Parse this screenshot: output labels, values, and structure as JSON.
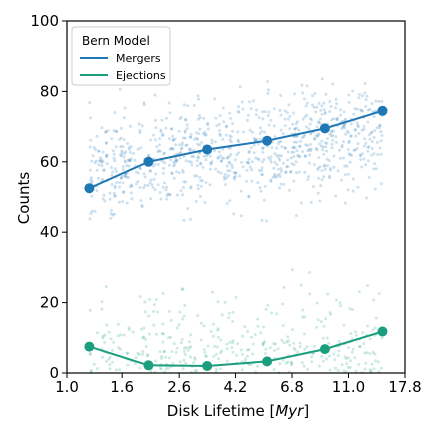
{
  "chart_data": {
    "type": "scatter",
    "title": "",
    "xlabel_text": "Disk Lifetime ",
    "xlabel_unit": "Myr",
    "ylabel": "Counts",
    "x_scale": "log",
    "xlim": [
      1.0,
      17.8
    ],
    "ylim": [
      0,
      100
    ],
    "x_ticks": [
      1.0,
      1.6,
      2.6,
      4.2,
      6.8,
      11.0,
      17.8
    ],
    "x_tick_labels": [
      "1.0",
      "1.6",
      "2.6",
      "4.2",
      "6.8",
      "11.0",
      "17.8"
    ],
    "y_ticks": [
      0,
      20,
      40,
      60,
      80,
      100
    ],
    "y_tick_labels": [
      "0",
      "20",
      "40",
      "60",
      "80",
      "100"
    ],
    "legend": {
      "title": "Bern Model",
      "placement": "top-left",
      "entries": [
        "Mergers",
        "Ejections"
      ]
    },
    "series": [
      {
        "name": "Mergers",
        "color": "#1f77b4",
        "x": [
          1.21,
          2.0,
          3.3,
          5.5,
          9.0,
          14.7
        ],
        "y": [
          52.5,
          60.0,
          63.5,
          66.0,
          69.5,
          74.5
        ],
        "scatter_cloud": {
          "y_center": 63,
          "y_spread": 16,
          "y_min": 38,
          "y_max": 84,
          "x_min": 1.21,
          "x_max": 14.7
        }
      },
      {
        "name": "Ejections",
        "color": "#1a9e7e",
        "x": [
          1.21,
          2.0,
          3.3,
          5.5,
          9.0,
          14.7
        ],
        "y": [
          7.5,
          2.2,
          2.0,
          3.3,
          6.8,
          11.8
        ],
        "scatter_cloud": {
          "y_center": 11,
          "y_spread": 13,
          "y_min": 0,
          "y_max": 30,
          "x_min": 1.21,
          "x_max": 14.7
        }
      }
    ]
  }
}
